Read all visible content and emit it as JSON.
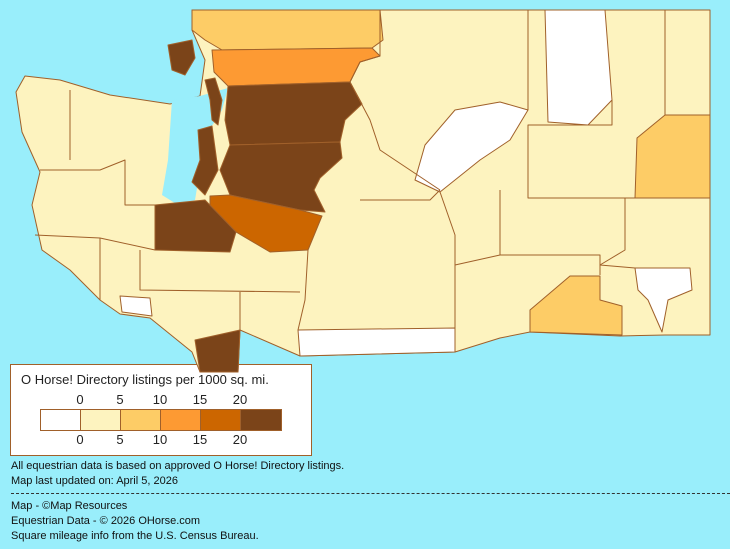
{
  "legend": {
    "title": "O Horse! Directory listings per 1000 sq. mi.",
    "ticks_top": [
      "0",
      "5",
      "10",
      "15",
      "20"
    ],
    "ticks_bottom": [
      "0",
      "5",
      "10",
      "15",
      "20"
    ],
    "colors": [
      "#ffffff",
      "#fdf3bf",
      "#fdcc66",
      "#fd9a33",
      "#cc6600",
      "#7b4419"
    ]
  },
  "colors": {
    "water": "#99eefb",
    "border": "#a0602a"
  },
  "footer": {
    "line1": "All equestrian data is based on approved O Horse! Directory listings.",
    "line2": "Map last updated on: April 5, 2026",
    "credit1": "Map - ©Map Resources",
    "credit2": "Equestrian Data - © 2026 OHorse.com",
    "credit3": "Square mileage info from the U.S. Census Bureau."
  }
}
